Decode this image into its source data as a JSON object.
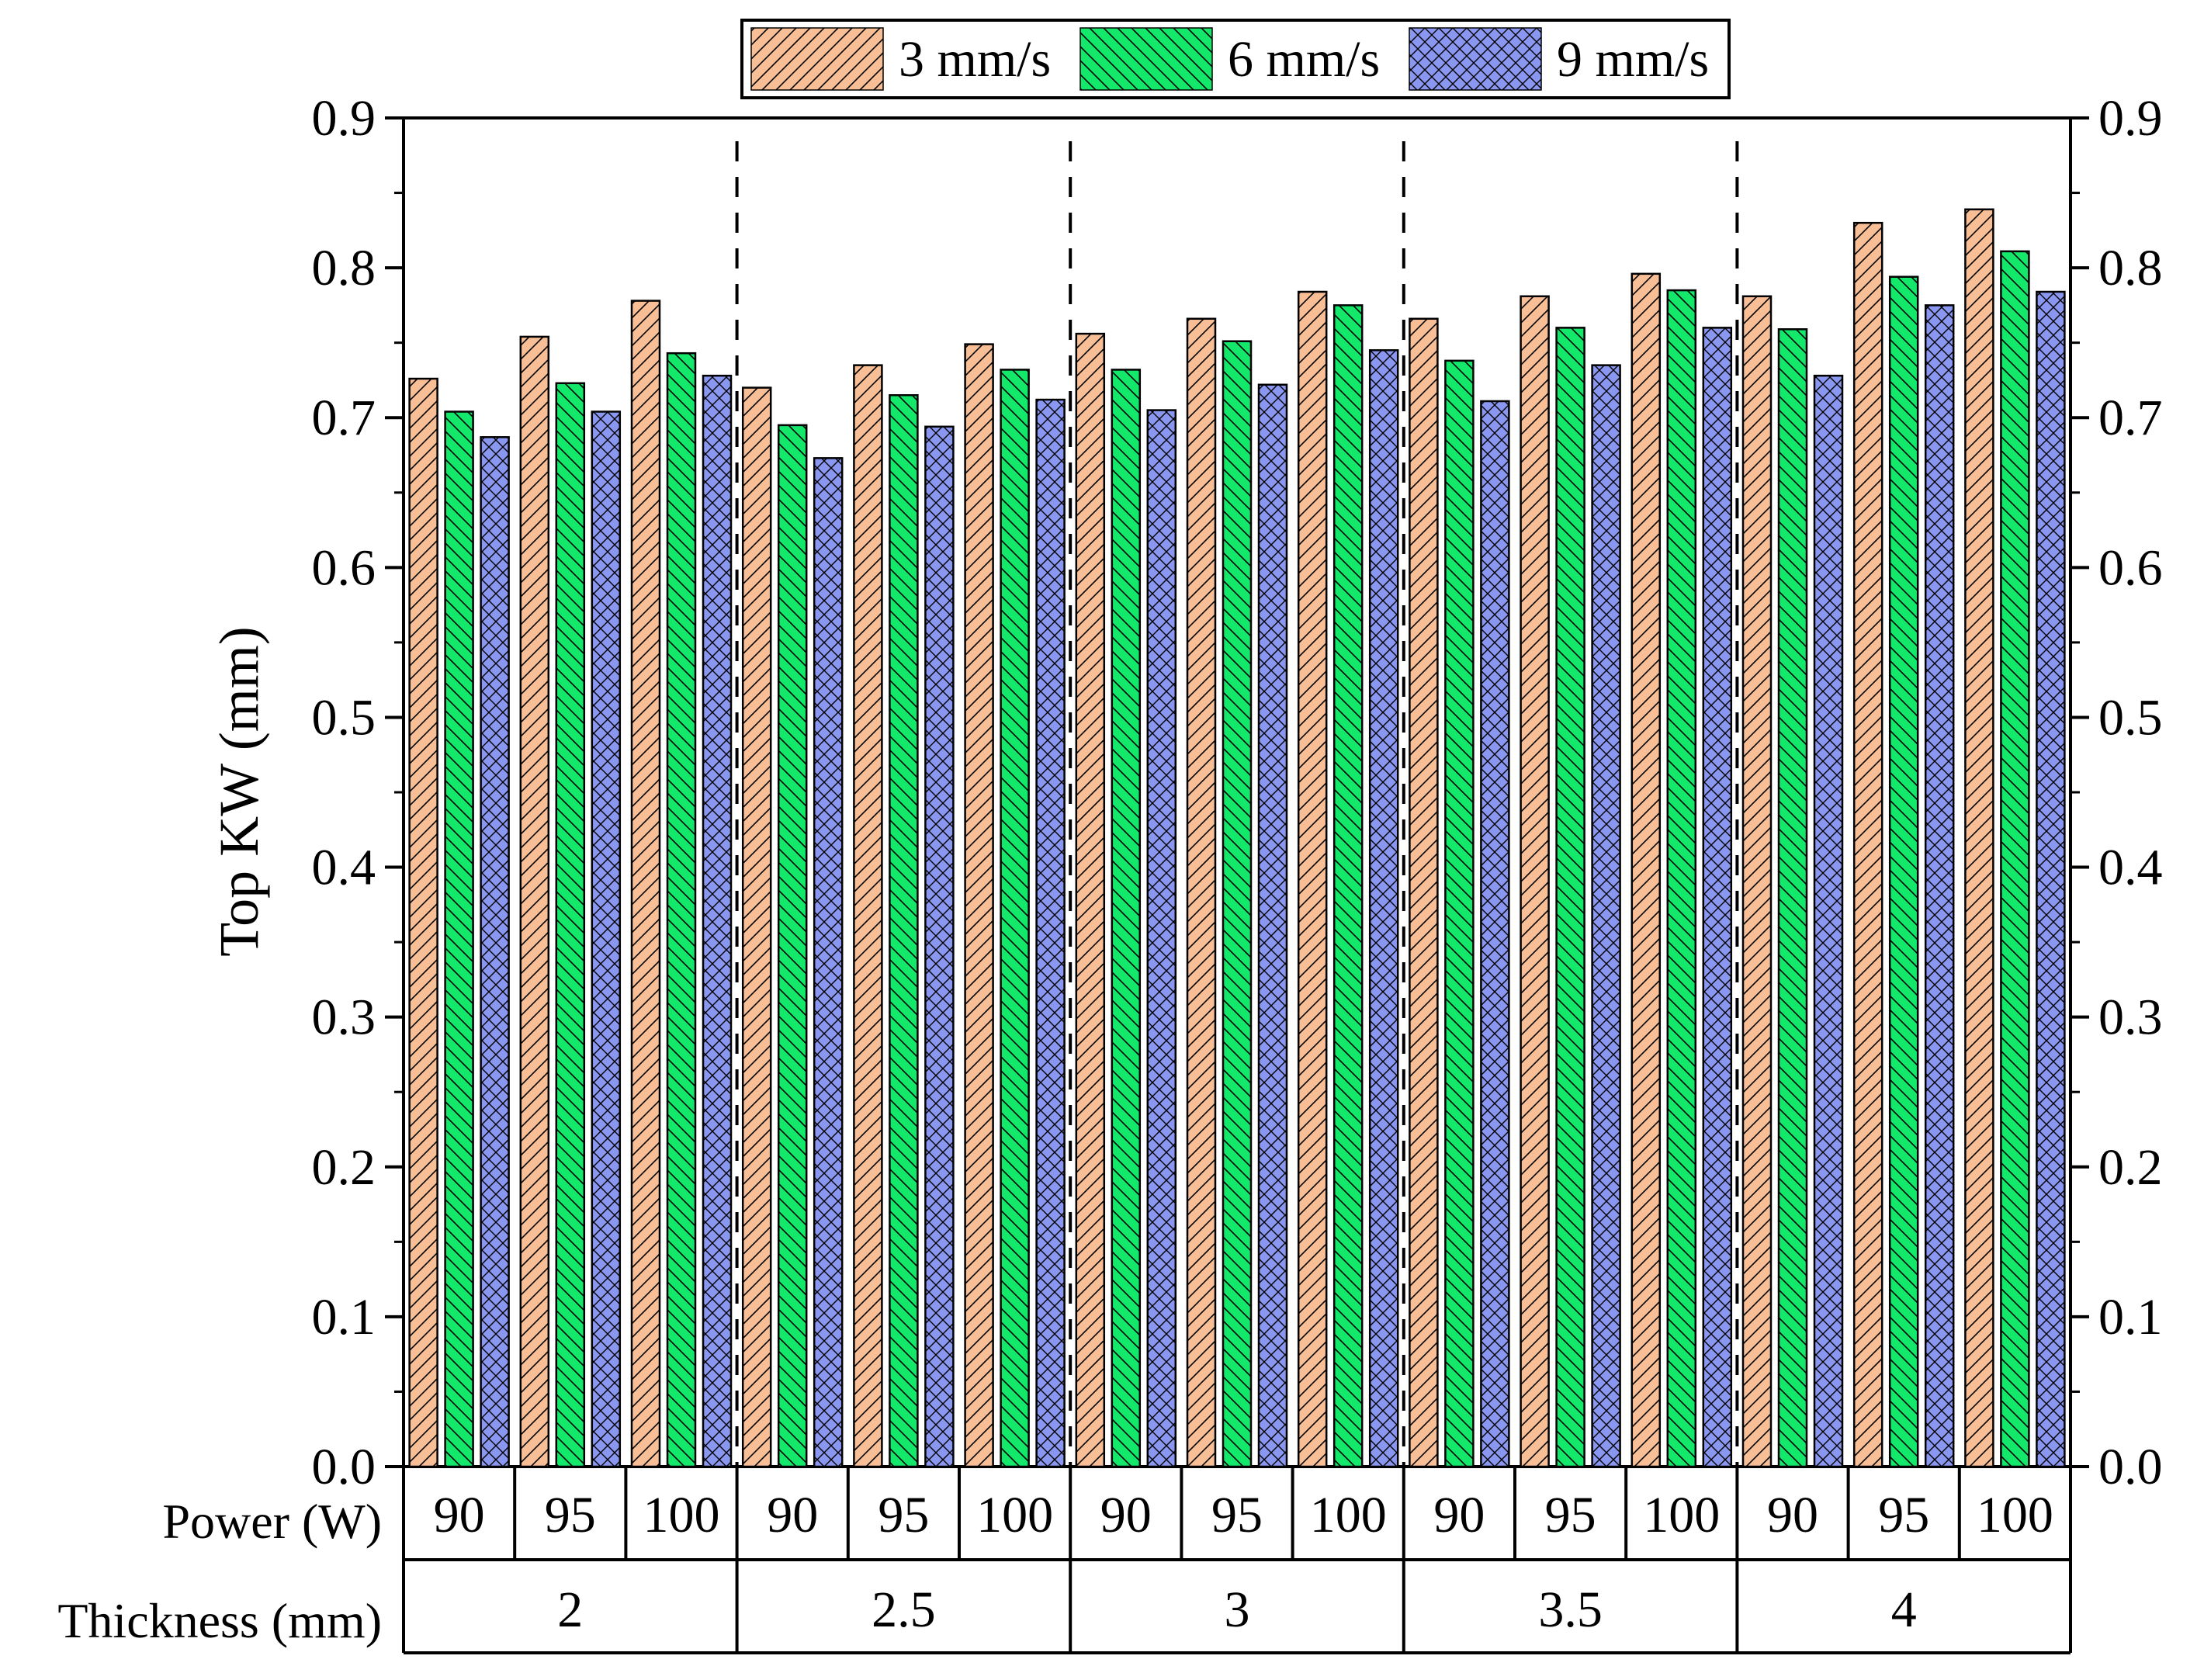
{
  "chart_data": {
    "type": "bar",
    "title": "",
    "ylabel": "Top KW (mm)",
    "xlabel": "",
    "ylim": [
      0.0,
      0.9
    ],
    "yticks": [
      "0.0",
      "0.1",
      "0.2",
      "0.3",
      "0.4",
      "0.5",
      "0.6",
      "0.7",
      "0.8",
      "0.9"
    ],
    "legend_position": "top-center",
    "row_labels": {
      "power": "Power (W)",
      "thickness": "Thickness (mm)"
    },
    "thickness_groups": [
      "2",
      "2.5",
      "3",
      "3.5",
      "4"
    ],
    "power_levels": [
      "90",
      "95",
      "100"
    ],
    "series": [
      {
        "name": "3 mm/s",
        "color": "#F8BE96",
        "pattern": "diagonal-forward",
        "values": [
          0.726,
          0.754,
          0.778,
          0.72,
          0.735,
          0.749,
          0.756,
          0.766,
          0.784,
          0.766,
          0.781,
          0.796,
          0.781,
          0.83,
          0.839
        ]
      },
      {
        "name": "6 mm/s",
        "color": "#14E86B",
        "pattern": "diagonal-backward",
        "values": [
          0.704,
          0.723,
          0.743,
          0.695,
          0.715,
          0.732,
          0.732,
          0.751,
          0.775,
          0.738,
          0.76,
          0.785,
          0.759,
          0.794,
          0.811
        ]
      },
      {
        "name": "9 mm/s",
        "color": "#8A97F0",
        "pattern": "crosshatch",
        "values": [
          0.687,
          0.704,
          0.728,
          0.673,
          0.694,
          0.712,
          0.705,
          0.722,
          0.745,
          0.711,
          0.735,
          0.76,
          0.728,
          0.775,
          0.784
        ]
      }
    ],
    "group_separators": "dashed"
  }
}
